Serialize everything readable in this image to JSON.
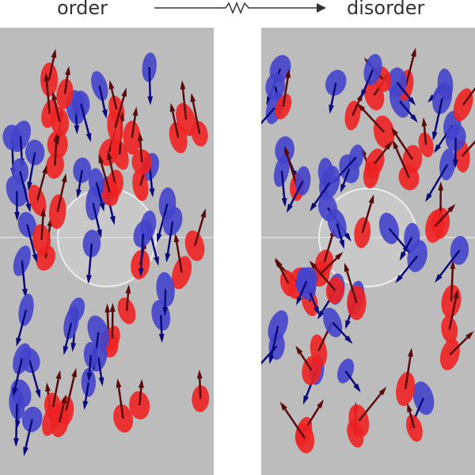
{
  "labels": {
    "left": "order",
    "right": "disorder"
  },
  "colors": {
    "team_a": "#ee2222",
    "team_b": "#4444cc",
    "arrow_a": "#5a0c0c",
    "arrow_b": "#0a0a7a",
    "court": "#bcbcbc"
  },
  "icons": {
    "transition": "arrow-with-resistor-zigzag"
  }
}
